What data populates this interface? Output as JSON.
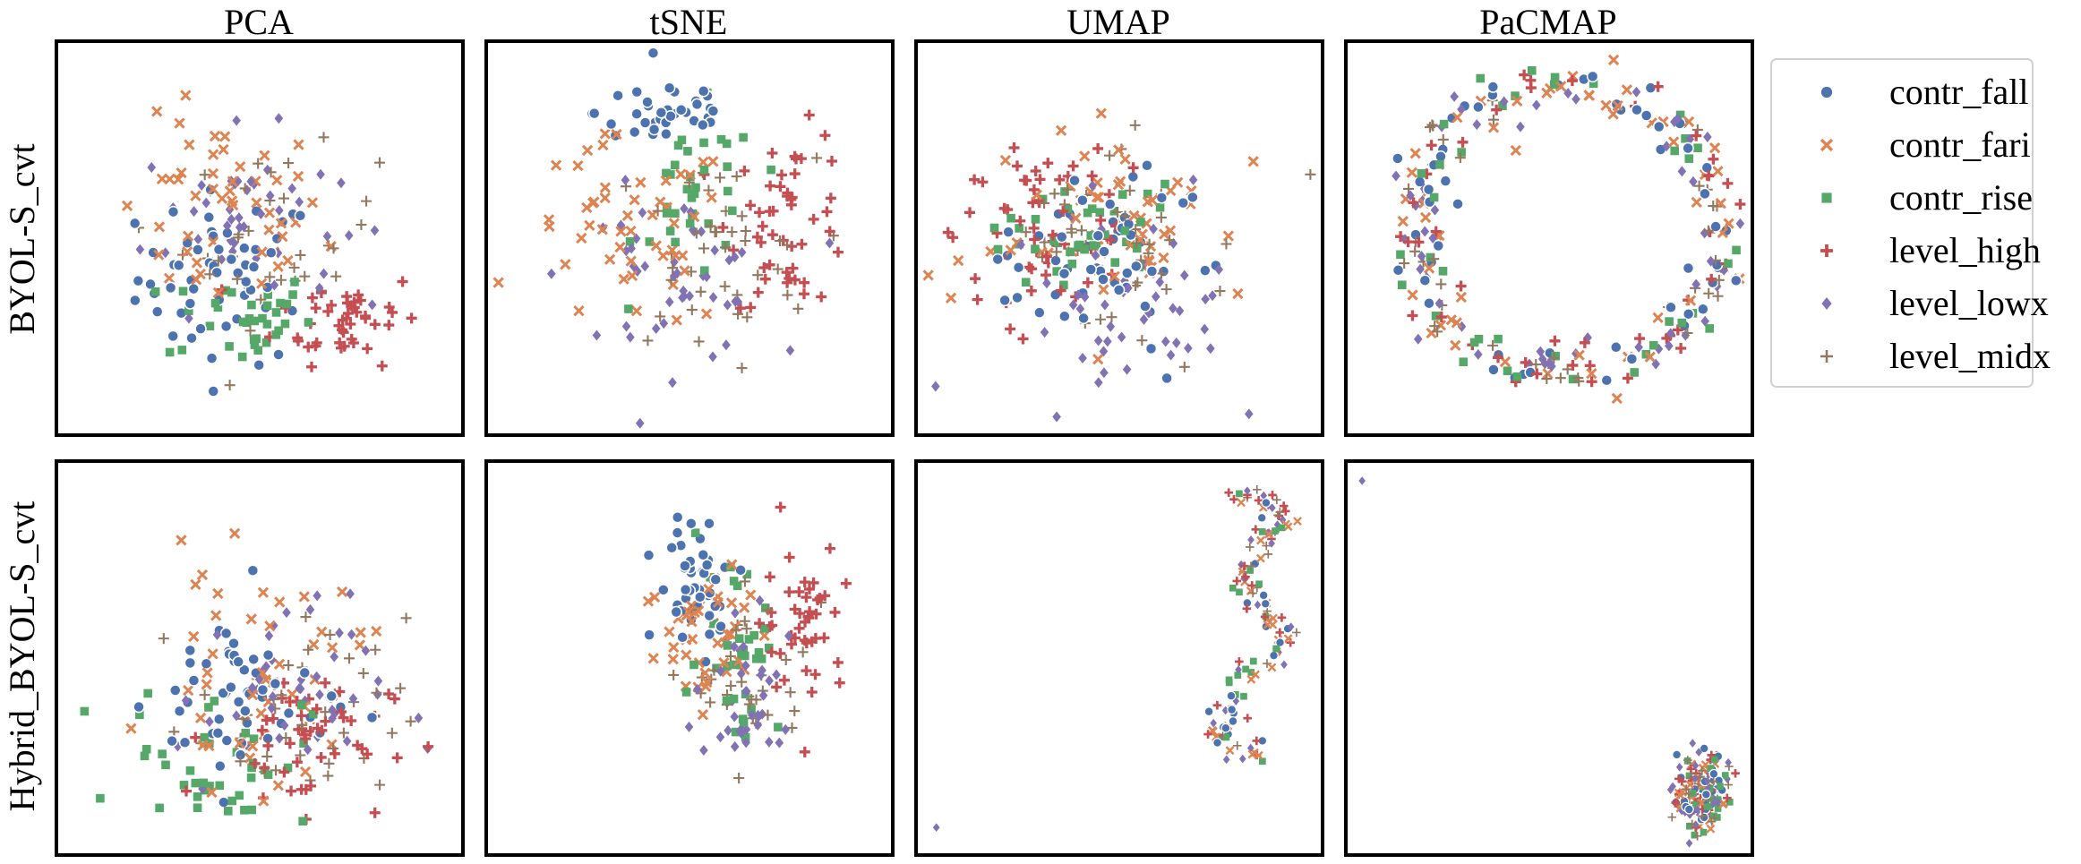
{
  "figure": {
    "columns": [
      "PCA",
      "tSNE",
      "UMAP",
      "PaCMAP"
    ],
    "rows": [
      "BYOL-S_cvt",
      "Hybrid_BYOL-S_cvt"
    ]
  },
  "legend": {
    "placement": "right",
    "entries": [
      {
        "label": "contr_fall",
        "color": "#4c72b0",
        "marker": "circle"
      },
      {
        "label": "contr_fari",
        "color": "#dd8452",
        "marker": "x"
      },
      {
        "label": "contr_rise",
        "color": "#55a868",
        "marker": "square"
      },
      {
        "label": "level_high",
        "color": "#c44e52",
        "marker": "plus"
      },
      {
        "label": "level_lowx",
        "color": "#8172b3",
        "marker": "diamond"
      },
      {
        "label": "level_midx",
        "color": "#937860",
        "marker": "thin-plus"
      }
    ]
  },
  "chart_data": [
    {
      "type": "scatter",
      "row": "BYOL-S_cvt",
      "column": "PCA",
      "xlim": [
        0,
        1
      ],
      "ylim": [
        0,
        1
      ],
      "xticks": "none",
      "yticks": "none",
      "clusters": [
        {
          "series": "contr_fall",
          "center": [
            0.42,
            0.4
          ],
          "spread": [
            0.22,
            0.22
          ],
          "count": 55
        },
        {
          "series": "contr_fari",
          "center": [
            0.4,
            0.55
          ],
          "spread": [
            0.26,
            0.25
          ],
          "count": 50
        },
        {
          "series": "contr_rise",
          "center": [
            0.45,
            0.3
          ],
          "spread": [
            0.18,
            0.12
          ],
          "count": 35
        },
        {
          "series": "level_high",
          "center": [
            0.72,
            0.3
          ],
          "spread": [
            0.18,
            0.12
          ],
          "count": 45
        },
        {
          "series": "level_lowx",
          "center": [
            0.45,
            0.55
          ],
          "spread": [
            0.24,
            0.22
          ],
          "count": 45
        },
        {
          "series": "level_midx",
          "center": [
            0.55,
            0.5
          ],
          "spread": [
            0.24,
            0.22
          ],
          "count": 35
        }
      ]
    },
    {
      "type": "scatter",
      "row": "BYOL-S_cvt",
      "column": "tSNE",
      "xlim": [
        0,
        1
      ],
      "ylim": [
        0,
        1
      ],
      "xticks": "none",
      "yticks": "none",
      "clusters": [
        {
          "series": "contr_fall",
          "center": [
            0.45,
            0.82
          ],
          "spread": [
            0.18,
            0.1
          ],
          "count": 40
        },
        {
          "series": "contr_fari",
          "center": [
            0.35,
            0.5
          ],
          "spread": [
            0.26,
            0.25
          ],
          "count": 50
        },
        {
          "series": "contr_rise",
          "center": [
            0.52,
            0.6
          ],
          "spread": [
            0.15,
            0.22
          ],
          "count": 35
        },
        {
          "series": "level_high",
          "center": [
            0.75,
            0.55
          ],
          "spread": [
            0.15,
            0.22
          ],
          "count": 50
        },
        {
          "series": "level_lowx",
          "center": [
            0.45,
            0.4
          ],
          "spread": [
            0.25,
            0.22
          ],
          "count": 45
        },
        {
          "series": "level_midx",
          "center": [
            0.55,
            0.45
          ],
          "spread": [
            0.26,
            0.25
          ],
          "count": 40
        }
      ]
    },
    {
      "type": "scatter",
      "row": "BYOL-S_cvt",
      "column": "UMAP",
      "xlim": [
        0,
        1
      ],
      "ylim": [
        0,
        1
      ],
      "xticks": "none",
      "yticks": "none",
      "clusters": [
        {
          "series": "contr_fall",
          "center": [
            0.45,
            0.45
          ],
          "spread": [
            0.25,
            0.22
          ],
          "count": 55
        },
        {
          "series": "contr_fari",
          "center": [
            0.5,
            0.55
          ],
          "spread": [
            0.28,
            0.26
          ],
          "count": 55
        },
        {
          "series": "contr_rise",
          "center": [
            0.4,
            0.5
          ],
          "spread": [
            0.22,
            0.18
          ],
          "count": 40
        },
        {
          "series": "level_high",
          "center": [
            0.3,
            0.55
          ],
          "spread": [
            0.22,
            0.25
          ],
          "count": 55
        },
        {
          "series": "level_lowx",
          "center": [
            0.5,
            0.35
          ],
          "spread": [
            0.28,
            0.25
          ],
          "count": 50
        },
        {
          "series": "level_midx",
          "center": [
            0.5,
            0.5
          ],
          "spread": [
            0.28,
            0.26
          ],
          "count": 40
        }
      ]
    },
    {
      "type": "scatter",
      "row": "BYOL-S_cvt",
      "column": "PaCMAP",
      "xlim": [
        0,
        1
      ],
      "ylim": [
        0,
        1
      ],
      "xticks": "none",
      "yticks": "none",
      "shape": "ring",
      "ring": {
        "center": [
          0.55,
          0.52
        ],
        "radius": [
          0.38,
          0.36
        ]
      },
      "clusters": [
        {
          "series": "contr_fall",
          "count": 55
        },
        {
          "series": "contr_fari",
          "count": 55
        },
        {
          "series": "contr_rise",
          "count": 40
        },
        {
          "series": "level_high",
          "count": 45
        },
        {
          "series": "level_lowx",
          "count": 55
        },
        {
          "series": "level_midx",
          "count": 40
        }
      ]
    },
    {
      "type": "scatter",
      "row": "Hybrid_BYOL-S_cvt",
      "column": "PCA",
      "xlim": [
        0,
        1
      ],
      "ylim": [
        0,
        1
      ],
      "xticks": "none",
      "yticks": "none",
      "clusters": [
        {
          "series": "contr_fall",
          "center": [
            0.45,
            0.4
          ],
          "spread": [
            0.22,
            0.25
          ],
          "count": 50
        },
        {
          "series": "contr_fari",
          "center": [
            0.5,
            0.45
          ],
          "spread": [
            0.26,
            0.28
          ],
          "count": 50
        },
        {
          "series": "contr_rise",
          "center": [
            0.4,
            0.25
          ],
          "spread": [
            0.22,
            0.18
          ],
          "count": 40
        },
        {
          "series": "level_high",
          "center": [
            0.6,
            0.3
          ],
          "spread": [
            0.22,
            0.18
          ],
          "count": 50
        },
        {
          "series": "level_lowx",
          "center": [
            0.55,
            0.4
          ],
          "spread": [
            0.26,
            0.25
          ],
          "count": 45
        },
        {
          "series": "level_midx",
          "center": [
            0.6,
            0.35
          ],
          "spread": [
            0.26,
            0.25
          ],
          "count": 40
        }
      ]
    },
    {
      "type": "scatter",
      "row": "Hybrid_BYOL-S_cvt",
      "column": "tSNE",
      "xlim": [
        0,
        1
      ],
      "ylim": [
        0,
        1
      ],
      "xticks": "none",
      "yticks": "none",
      "clusters": [
        {
          "series": "contr_fall",
          "center": [
            0.52,
            0.7
          ],
          "spread": [
            0.1,
            0.16
          ],
          "count": 45
        },
        {
          "series": "contr_fari",
          "center": [
            0.55,
            0.55
          ],
          "spread": [
            0.16,
            0.22
          ],
          "count": 45
        },
        {
          "series": "contr_rise",
          "center": [
            0.62,
            0.55
          ],
          "spread": [
            0.1,
            0.25
          ],
          "count": 35
        },
        {
          "series": "level_high",
          "center": [
            0.78,
            0.6
          ],
          "spread": [
            0.1,
            0.2
          ],
          "count": 45
        },
        {
          "series": "level_lowx",
          "center": [
            0.65,
            0.4
          ],
          "spread": [
            0.14,
            0.18
          ],
          "count": 40
        },
        {
          "series": "level_midx",
          "center": [
            0.65,
            0.45
          ],
          "spread": [
            0.14,
            0.22
          ],
          "count": 35
        }
      ]
    },
    {
      "type": "scatter",
      "row": "Hybrid_BYOL-S_cvt",
      "column": "UMAP",
      "xlim": [
        0,
        1
      ],
      "ylim": [
        0,
        1
      ],
      "xticks": "none",
      "yticks": "none",
      "shape": "path",
      "path": [
        [
          0.78,
          0.9
        ],
        [
          0.85,
          0.92
        ],
        [
          0.9,
          0.85
        ],
        [
          0.84,
          0.78
        ],
        [
          0.8,
          0.7
        ],
        [
          0.86,
          0.62
        ],
        [
          0.92,
          0.55
        ],
        [
          0.86,
          0.48
        ],
        [
          0.8,
          0.45
        ],
        [
          0.78,
          0.4
        ],
        [
          0.75,
          0.35
        ],
        [
          0.74,
          0.3
        ],
        [
          0.8,
          0.28
        ],
        [
          0.86,
          0.27
        ]
      ],
      "outliers": [
        {
          "series": "level_lowx",
          "x": 0.05,
          "y": 0.07
        }
      ],
      "clusters": [
        {
          "series": "contr_fall",
          "count": 20
        },
        {
          "series": "contr_fari",
          "count": 30
        },
        {
          "series": "contr_rise",
          "count": 22
        },
        {
          "series": "level_high",
          "count": 26
        },
        {
          "series": "level_lowx",
          "count": 24
        },
        {
          "series": "level_midx",
          "count": 20
        }
      ]
    },
    {
      "type": "scatter",
      "row": "Hybrid_BYOL-S_cvt",
      "column": "PaCMAP",
      "xlim": [
        0,
        1
      ],
      "ylim": [
        0,
        1
      ],
      "xticks": "none",
      "yticks": "none",
      "shape": "blob",
      "blob": {
        "center": [
          0.88,
          0.16
        ],
        "radius": [
          0.07,
          0.12
        ]
      },
      "outliers": [
        {
          "series": "level_lowx",
          "x": 0.04,
          "y": 0.95
        }
      ],
      "clusters": [
        {
          "series": "contr_fall",
          "count": 30
        },
        {
          "series": "contr_fari",
          "count": 30
        },
        {
          "series": "contr_rise",
          "count": 25
        },
        {
          "series": "level_high",
          "count": 30
        },
        {
          "series": "level_lowx",
          "count": 30
        },
        {
          "series": "level_midx",
          "count": 25
        }
      ]
    }
  ]
}
